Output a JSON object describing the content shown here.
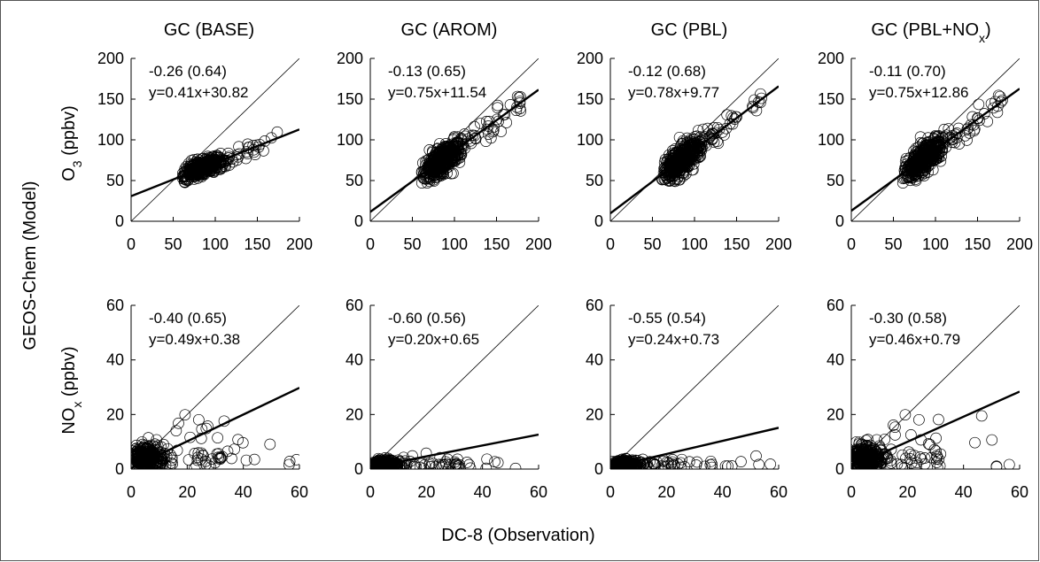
{
  "figure": {
    "ylabel": "GEOS-Chem (Model)",
    "xlabel": "DC-8 (Observation)",
    "columns": [
      "GC (BASE)",
      "GC (AROM)",
      "GC (PBL)",
      "GC (PBL+NO_x)"
    ],
    "row_labels": [
      {
        "main": "O",
        "sub": "3",
        "unit": " (ppbv)"
      },
      {
        "main": "NO",
        "sub": "x",
        "unit": " (ppbv)"
      }
    ]
  },
  "chart_data": [
    {
      "type": "scatter",
      "species": "O3",
      "title": "GC (BASE)",
      "xlim": [
        0,
        200
      ],
      "ylim": [
        0,
        200
      ],
      "ticks": [
        0,
        50,
        100,
        150,
        200
      ],
      "stat": "-0.26 (0.64)",
      "equation": "y=0.41x+30.82",
      "fit": {
        "slope": 0.41,
        "intercept": 30.82
      },
      "one_to_one": true
    },
    {
      "type": "scatter",
      "species": "O3",
      "title": "GC (AROM)",
      "xlim": [
        0,
        200
      ],
      "ylim": [
        0,
        200
      ],
      "ticks": [
        0,
        50,
        100,
        150,
        200
      ],
      "stat": "-0.13 (0.65)",
      "equation": "y=0.75x+11.54",
      "fit": {
        "slope": 0.75,
        "intercept": 11.54
      },
      "one_to_one": true
    },
    {
      "type": "scatter",
      "species": "O3",
      "title": "GC (PBL)",
      "xlim": [
        0,
        200
      ],
      "ylim": [
        0,
        200
      ],
      "ticks": [
        0,
        50,
        100,
        150,
        200
      ],
      "stat": "-0.12 (0.68)",
      "equation": "y=0.78x+9.77",
      "fit": {
        "slope": 0.78,
        "intercept": 9.77
      },
      "one_to_one": true
    },
    {
      "type": "scatter",
      "species": "O3",
      "title": "GC (PBL+NOx)",
      "xlim": [
        0,
        200
      ],
      "ylim": [
        0,
        200
      ],
      "ticks": [
        0,
        50,
        100,
        150,
        200
      ],
      "stat": "-0.11 (0.70)",
      "equation": "y=0.75x+12.86",
      "fit": {
        "slope": 0.75,
        "intercept": 12.86
      },
      "one_to_one": true
    },
    {
      "type": "scatter",
      "species": "NOx",
      "title": "GC (BASE)",
      "xlim": [
        0,
        60
      ],
      "ylim": [
        0,
        60
      ],
      "ticks": [
        0,
        20,
        40,
        60
      ],
      "stat": "-0.40 (0.65)",
      "equation": "y=0.49x+0.38",
      "fit": {
        "slope": 0.49,
        "intercept": 0.38
      },
      "one_to_one": true
    },
    {
      "type": "scatter",
      "species": "NOx",
      "title": "GC (AROM)",
      "xlim": [
        0,
        60
      ],
      "ylim": [
        0,
        60
      ],
      "ticks": [
        0,
        20,
        40,
        60
      ],
      "stat": "-0.60 (0.56)",
      "equation": "y=0.20x+0.65",
      "fit": {
        "slope": 0.2,
        "intercept": 0.65
      },
      "one_to_one": true
    },
    {
      "type": "scatter",
      "species": "NOx",
      "title": "GC (PBL)",
      "xlim": [
        0,
        60
      ],
      "ylim": [
        0,
        60
      ],
      "ticks": [
        0,
        20,
        40,
        60
      ],
      "stat": "-0.55 (0.54)",
      "equation": "y=0.24x+0.73",
      "fit": {
        "slope": 0.24,
        "intercept": 0.73
      },
      "one_to_one": true
    },
    {
      "type": "scatter",
      "species": "NOx",
      "title": "GC (PBL+NOx)",
      "xlim": [
        0,
        60
      ],
      "ylim": [
        0,
        60
      ],
      "ticks": [
        0,
        20,
        40,
        60
      ],
      "stat": "-0.30 (0.58)",
      "equation": "y=0.46x+0.79",
      "fit": {
        "slope": 0.46,
        "intercept": 0.79
      },
      "one_to_one": true
    }
  ]
}
